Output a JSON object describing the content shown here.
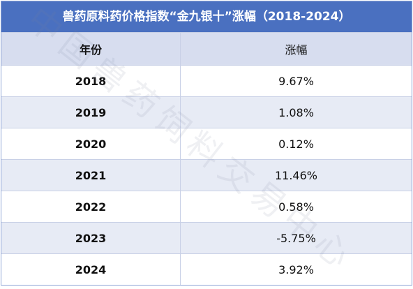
{
  "header": {
    "title": "兽药原料药价格指数“金九银十”涨幅（2018-2024）"
  },
  "table": {
    "columns": [
      "年份",
      "涨幅"
    ],
    "rows": [
      [
        "2018",
        "9.67%"
      ],
      [
        "2019",
        "1.08%"
      ],
      [
        "2020",
        "0.12%"
      ],
      [
        "2021",
        "11.46%"
      ],
      [
        "2022",
        "0.58%"
      ],
      [
        "2023",
        "-5.75%"
      ],
      [
        "2024",
        "3.92%"
      ]
    ]
  },
  "watermark": "中国兽药饲料交易中心"
}
